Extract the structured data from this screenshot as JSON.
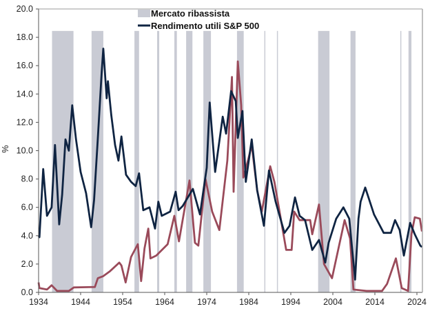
{
  "chart_data": {
    "type": "line",
    "title": "",
    "xlabel": "",
    "ylabel": "%",
    "xlim": [
      1934,
      2025.3
    ],
    "ylim": [
      0,
      20
    ],
    "x_ticks": [
      1934,
      1944,
      1954,
      1964,
      1974,
      1984,
      1994,
      2004,
      2014,
      2024
    ],
    "y_ticks": [
      "0.0",
      "2.0",
      "4.0",
      "6.0",
      "8.0",
      "10.0",
      "12.0",
      "14.0",
      "16.0",
      "18.0",
      "20.0"
    ],
    "grid": false,
    "legend": {
      "placement": "top-center",
      "entries": [
        {
          "label": "Mercato ribassista",
          "type": "band",
          "color": "#c9cbd4"
        },
        {
          "label": "Rendimento utili S&P 500",
          "type": "line",
          "color": "#0f2442"
        }
      ]
    },
    "bands": {
      "name": "Mercato ribassista",
      "color": "#c9cbd4",
      "periods": [
        [
          1937.2,
          1942.3
        ],
        [
          1946.6,
          1949.4
        ],
        [
          1956.8,
          1957.9
        ],
        [
          1962.2,
          1962.7
        ],
        [
          1966.3,
          1966.9
        ],
        [
          1969.1,
          1970.6
        ],
        [
          1973.2,
          1975.0
        ],
        [
          1981.2,
          1982.8
        ],
        [
          1987.7,
          1987.9
        ],
        [
          1990.7,
          1990.9
        ],
        [
          2000.5,
          2003.2
        ],
        [
          2008.2,
          2009.4
        ],
        [
          2020.05,
          2020.25
        ],
        [
          2022.0,
          2022.7
        ]
      ]
    },
    "series": [
      {
        "name": "Rendimento utili S&P 500",
        "color": "#0f2442",
        "x": [
          1934,
          1934.2,
          1935.1,
          1936,
          1937.1,
          1937.9,
          1938.9,
          1939.6,
          1940.4,
          1941.2,
          1942,
          1942.9,
          1944,
          1945.3,
          1946.5,
          1947.2,
          1948.1,
          1949.0,
          1949.4,
          1950.2,
          1950.5,
          1951.3,
          1952.2,
          1953,
          1953.7,
          1954.8,
          1956,
          1957.1,
          1957.9,
          1958.9,
          1960.4,
          1961.7,
          1962.5,
          1963.3,
          1965.3,
          1966.6,
          1967.3,
          1968.3,
          1970.7,
          1972.4,
          1974,
          1974.7,
          1976,
          1977.8,
          1978.6,
          1979.8,
          1980.9,
          1981.4,
          1982.5,
          1983.3,
          1984.7,
          1986,
          1987.6,
          1988.8,
          1990.4,
          1992.5,
          1993.7,
          1995,
          1996.1,
          1997.4,
          1999.1,
          2000.7,
          2002.2,
          2003,
          2004.8,
          2006.5,
          2007.9,
          2009.3,
          2010.1,
          2010.6,
          2011.7,
          2013.8,
          2016.1,
          2017.8,
          2018.8,
          2019.9,
          2020.9,
          2022.4,
          2023.5,
          2024.8,
          2025.2
        ],
        "y": [
          4.0,
          3.9,
          8.7,
          5.4,
          6.0,
          10.4,
          4.8,
          6.9,
          10.8,
          10.0,
          13.2,
          10.8,
          8.5,
          7.0,
          4.6,
          6.5,
          10.9,
          15.5,
          17.2,
          13.7,
          14.9,
          12.5,
          10.4,
          9.3,
          11.0,
          8.3,
          7.8,
          7.5,
          8.4,
          5.8,
          6.0,
          4.5,
          6.4,
          5.4,
          5.7,
          7.1,
          5.8,
          6.1,
          7.3,
          5.5,
          8.8,
          13.4,
          8.5,
          12.4,
          11.2,
          14.2,
          13.5,
          10.9,
          12.8,
          7.8,
          10.8,
          7.2,
          4.7,
          8.6,
          6.4,
          4.2,
          4.7,
          6.7,
          5.4,
          5.1,
          3.0,
          3.7,
          2.1,
          3.5,
          5.2,
          6.0,
          5.2,
          0.9,
          5.2,
          6.4,
          7.4,
          5.5,
          4.2,
          4.2,
          5.1,
          4.4,
          2.6,
          4.9,
          4.1,
          3.3,
          3.2
        ]
      },
      {
        "name": "",
        "color": "#9a4a5a",
        "x": [
          1934,
          1934.2,
          1936,
          1937.1,
          1938.4,
          1941.2,
          1942.4,
          1947.4,
          1948.1,
          1949.4,
          1951,
          1953.2,
          1953.7,
          1954.7,
          1956,
          1957.6,
          1958.4,
          1959.2,
          1960.1,
          1960.6,
          1962,
          1964.7,
          1966.3,
          1967.4,
          1969.9,
          1971.2,
          1972,
          1973.7,
          1975.3,
          1977,
          1978.9,
          1980,
          1980.4,
          1981.4,
          1982.2,
          1982.7,
          1983.8,
          1984.7,
          1986,
          1987.1,
          1989.1,
          1990.1,
          1992.9,
          1994.2,
          1994.8,
          1996.1,
          1998.6,
          1999.1,
          2000.7,
          2001.9,
          2003.8,
          2006.8,
          2008.1,
          2008.9,
          2012,
          2015.7,
          2016.9,
          2019,
          2020.4,
          2021.9,
          2022.7,
          2023.5,
          2024.7,
          2025.2
        ],
        "y": [
          0.7,
          0.3,
          0.2,
          0.5,
          0.1,
          0.1,
          0.35,
          0.38,
          1.0,
          1.15,
          1.5,
          2.1,
          1.9,
          0.7,
          2.5,
          3.4,
          0.8,
          3.1,
          4.5,
          2.4,
          2.6,
          3.4,
          5.4,
          3.6,
          7.9,
          3.5,
          3.3,
          8.0,
          5.7,
          4.4,
          9.3,
          15.2,
          7.1,
          16.3,
          13.2,
          8.1,
          9.3,
          10.4,
          7.2,
          5.7,
          8.9,
          7.8,
          3.0,
          3.0,
          5.7,
          5.1,
          5.1,
          4.1,
          6.2,
          2.0,
          1.0,
          5.1,
          3.8,
          0.2,
          0.1,
          0.1,
          0.6,
          2.4,
          0.3,
          0.1,
          4.1,
          5.3,
          5.2,
          4.3
        ]
      }
    ]
  }
}
